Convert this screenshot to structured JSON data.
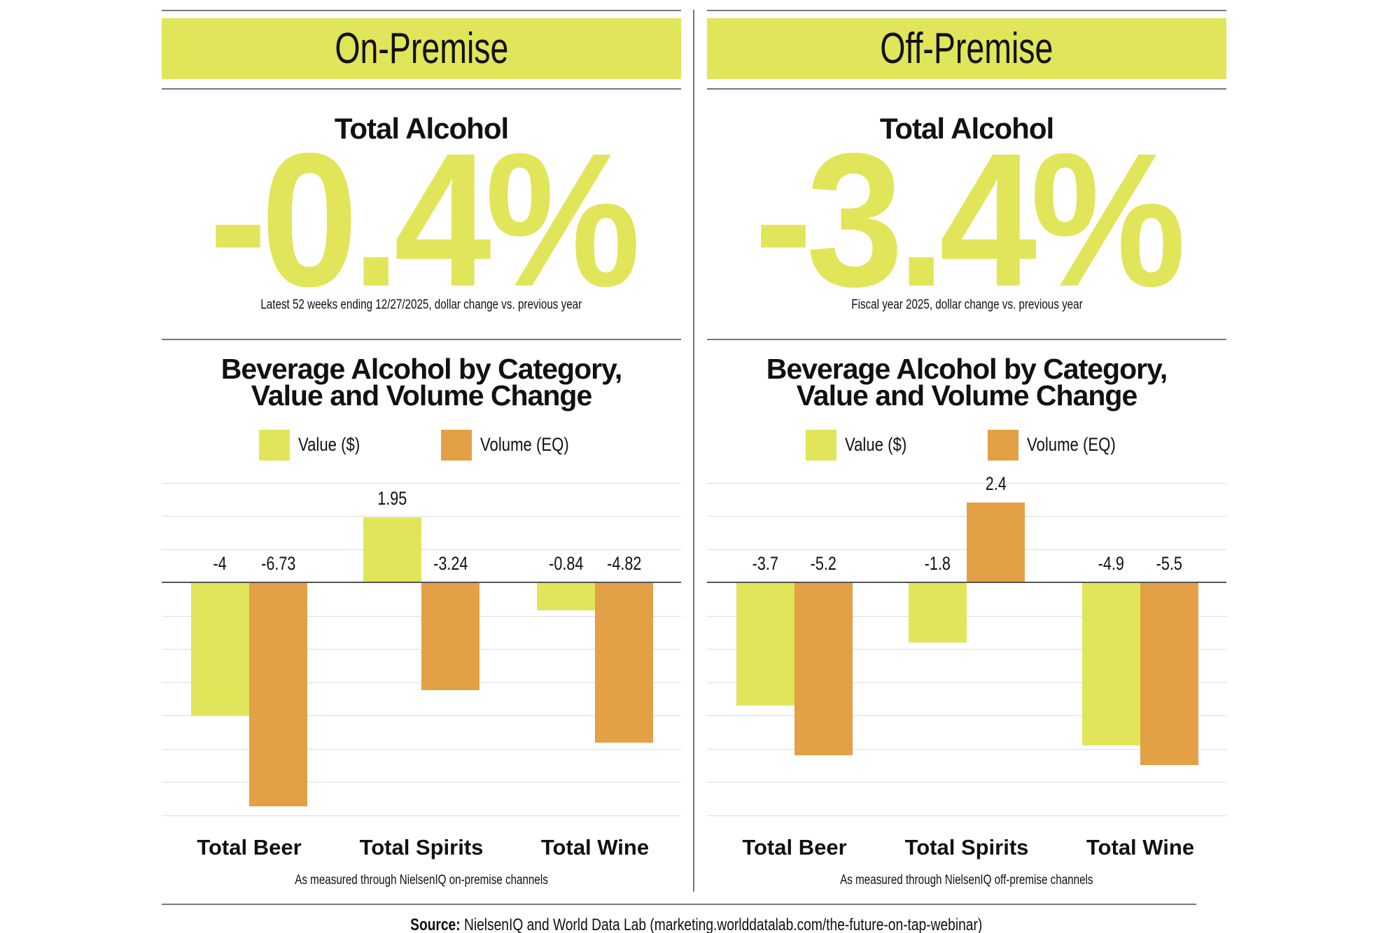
{
  "colors": {
    "value": "#e1e55a",
    "volume": "#e3a045"
  },
  "panels": [
    {
      "header": "On-Premise",
      "total_label": "Total Alcohol",
      "total_value": "-0.4%",
      "caption": "Latest 52 weeks ending 12/27/2025, dollar change vs. previous year",
      "chart_title_1": "Beverage Alcohol by Category,",
      "chart_title_2": "Value and Volume Change",
      "footnote": "As measured through NielsenIQ on-premise channels"
    },
    {
      "header": "Off-Premise",
      "total_label": "Total Alcohol",
      "total_value": "-3.4%",
      "caption": "Fiscal year 2025, dollar change vs. previous year",
      "chart_title_1": "Beverage Alcohol by Category,",
      "chart_title_2": "Value and Volume Change",
      "footnote": "As measured through NielsenIQ off-premise channels"
    }
  ],
  "source": {
    "label": "Source:",
    "text": " NielsenIQ and World Data Lab (marketing.worlddatalab.com/the-future-on-tap-webinar)"
  },
  "chart_data": [
    {
      "type": "bar",
      "title": "Beverage Alcohol by Category, Value and Volume Change",
      "categories": [
        "Total Beer",
        "Total Spirits",
        "Total Wine"
      ],
      "series": [
        {
          "name": "Value ($)",
          "values": [
            -4,
            1.95,
            -0.84
          ],
          "labels": [
            "-4",
            "1.95",
            "-0.84"
          ]
        },
        {
          "name": "Volume (EQ)",
          "values": [
            -6.73,
            -3.24,
            -4.82
          ],
          "labels": [
            "-6.73",
            "-3.24",
            "-4.82"
          ]
        }
      ],
      "ylim": [
        -7,
        3
      ],
      "grid": true,
      "legend": "top"
    },
    {
      "type": "bar",
      "title": "Beverage Alcohol by Category, Value and Volume Change",
      "categories": [
        "Total Beer",
        "Total Spirits",
        "Total Wine"
      ],
      "series": [
        {
          "name": "Value ($)",
          "values": [
            -3.7,
            -1.8,
            -4.9
          ],
          "labels": [
            "-3.7",
            "-1.8",
            "-4.9"
          ]
        },
        {
          "name": "Volume (EQ)",
          "values": [
            -5.2,
            2.4,
            -5.5
          ],
          "labels": [
            "-5.2",
            "2.4",
            "-5.5"
          ]
        }
      ],
      "ylim": [
        -7,
        3
      ],
      "grid": true,
      "legend": "top"
    }
  ]
}
